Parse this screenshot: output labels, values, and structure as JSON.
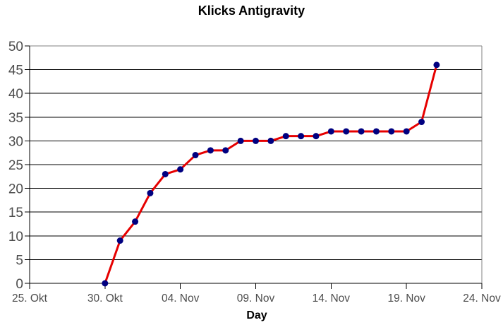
{
  "chart_data": {
    "type": "line",
    "title": "Klicks Antigravity",
    "xlabel": "Day",
    "ylabel": "",
    "legend": "none",
    "grid": "horizontal",
    "style": {
      "background": "#ffffff",
      "gridline": "#000000",
      "axis": "#000000",
      "plot_border": "#808080",
      "tick_label_color": "#4d4d4d",
      "title_color": "#000000"
    },
    "y_axis": {
      "min": 0,
      "max": 50,
      "step": 5,
      "tick_labels": [
        "0",
        "5",
        "10",
        "15",
        "20",
        "25",
        "30",
        "35",
        "40",
        "45",
        "50"
      ]
    },
    "x_axis": {
      "tick_labels": [
        "25. Okt",
        "30. Okt",
        "04. Nov",
        "09. Nov",
        "14. Nov",
        "19. Nov",
        "24. Nov"
      ],
      "tick_days": [
        0,
        5,
        10,
        15,
        20,
        25,
        30
      ],
      "range_days": [
        0,
        30
      ]
    },
    "series": [
      {
        "name": "Klicks",
        "color": "#e60000",
        "marker_color": "#000080",
        "points": [
          {
            "date": "30. Okt",
            "day": 5,
            "value": 0
          },
          {
            "date": "31. Okt",
            "day": 6,
            "value": 9
          },
          {
            "date": "01. Nov",
            "day": 7,
            "value": 13
          },
          {
            "date": "02. Nov",
            "day": 8,
            "value": 19
          },
          {
            "date": "03. Nov",
            "day": 9,
            "value": 23
          },
          {
            "date": "04. Nov",
            "day": 10,
            "value": 24
          },
          {
            "date": "05. Nov",
            "day": 11,
            "value": 27
          },
          {
            "date": "06. Nov",
            "day": 12,
            "value": 28
          },
          {
            "date": "07. Nov",
            "day": 13,
            "value": 28
          },
          {
            "date": "08. Nov",
            "day": 14,
            "value": 30
          },
          {
            "date": "09. Nov",
            "day": 15,
            "value": 30
          },
          {
            "date": "10. Nov",
            "day": 16,
            "value": 30
          },
          {
            "date": "11. Nov",
            "day": 17,
            "value": 31
          },
          {
            "date": "12. Nov",
            "day": 18,
            "value": 31
          },
          {
            "date": "13. Nov",
            "day": 19,
            "value": 31
          },
          {
            "date": "14. Nov",
            "day": 20,
            "value": 32
          },
          {
            "date": "15. Nov",
            "day": 21,
            "value": 32
          },
          {
            "date": "16. Nov",
            "day": 22,
            "value": 32
          },
          {
            "date": "17. Nov",
            "day": 23,
            "value": 32
          },
          {
            "date": "18. Nov",
            "day": 24,
            "value": 32
          },
          {
            "date": "19. Nov",
            "day": 25,
            "value": 32
          },
          {
            "date": "20. Nov",
            "day": 26,
            "value": 34
          },
          {
            "date": "21. Nov",
            "day": 27,
            "value": 46
          }
        ]
      }
    ]
  }
}
